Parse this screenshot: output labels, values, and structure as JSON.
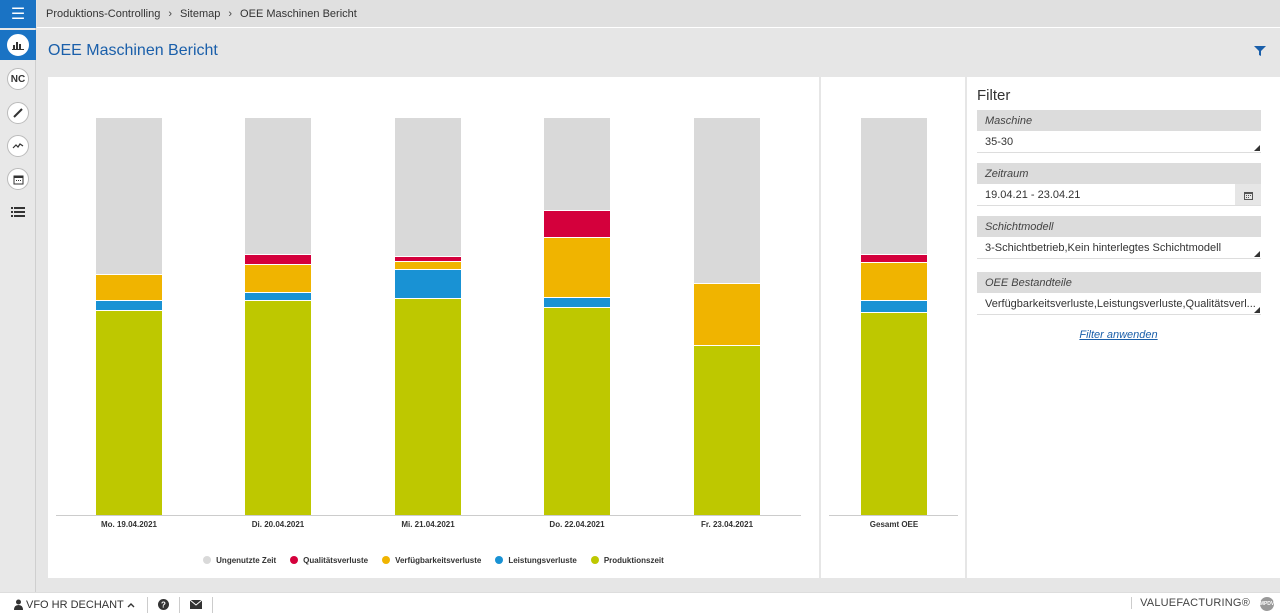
{
  "breadcrumb": [
    "Produktions-Controlling",
    "Sitemap",
    "OEE Maschinen Bericht"
  ],
  "page_title": "OEE Maschinen Bericht",
  "sidebar": {
    "items": [
      {
        "icon": "bar-chart-icon",
        "active": true
      },
      {
        "icon": "nc-icon",
        "label": "NC"
      },
      {
        "icon": "pen-icon"
      },
      {
        "icon": "trend-line-icon"
      },
      {
        "icon": "calendar-icon"
      },
      {
        "icon": "list-icon"
      }
    ]
  },
  "colors": {
    "ungenutzte_zeit": "#d9d9d9",
    "qualitaetsverluste": "#d4003c",
    "verfuegbarkeitsverluste": "#f0b400",
    "leistungsverluste": "#1992d4",
    "produktionszeit": "#bec800",
    "accent": "#1a73c4"
  },
  "chart_data": {
    "type": "bar",
    "stacked": true,
    "categories": [
      "Mo. 19.04.2021",
      "Di. 20.04.2021",
      "Mi. 21.04.2021",
      "Do. 22.04.2021",
      "Fr. 23.04.2021"
    ],
    "series": [
      {
        "name": "Produktionszeit",
        "values": [
          51.5,
          54.0,
          54.5,
          52.3,
          42.7
        ]
      },
      {
        "name": "Leistungsverluste",
        "values": [
          2.5,
          2.0,
          7.3,
          2.5,
          0
        ]
      },
      {
        "name": "Verfügbarkeitsverluste",
        "values": [
          6.5,
          7.0,
          2.0,
          15.0,
          15.7
        ]
      },
      {
        "name": "Qualitätsverluste",
        "values": [
          0,
          2.5,
          1.2,
          6.8,
          0
        ]
      },
      {
        "name": "Ungenutzte Zeit",
        "values": [
          39.5,
          34.5,
          35.0,
          23.4,
          41.6
        ]
      }
    ],
    "total": {
      "category": "Gesamt OEE",
      "values": {
        "Produktionszeit": 51.0,
        "Leistungsverluste": 3.0,
        "Verfügbarkeitsverluste": 9.5,
        "Qualitätsverluste": 2.0,
        "Ungenutzte Zeit": 34.5
      }
    },
    "legend": [
      "Ungenutzte Zeit",
      "Qualitätsverluste",
      "Verfügbarkeitsverluste",
      "Leistungsverluste",
      "Produktionszeit"
    ],
    "legend_position": "bottom-center",
    "ylim": [
      0,
      100
    ],
    "grid": false
  },
  "filter": {
    "title": "Filter",
    "groups": [
      {
        "label": "Maschine",
        "value": "35-30"
      },
      {
        "label": "Zeitraum",
        "value": "19.04.21 - 23.04.21"
      },
      {
        "label": "Schichtmodell",
        "value": "3-Schichtbetrieb,Kein hinterlegtes Schichtmodell"
      },
      {
        "label": "OEE Bestandteile",
        "value": "Verfügbarkeitsverluste,Leistungsverluste,Qualitätsverl..."
      }
    ],
    "apply_label": "Filter anwenden"
  },
  "footer": {
    "user": "VFO HR DECHANT",
    "brand": "VALUEFACTURING®",
    "brand_logo_text": "MPDV"
  }
}
